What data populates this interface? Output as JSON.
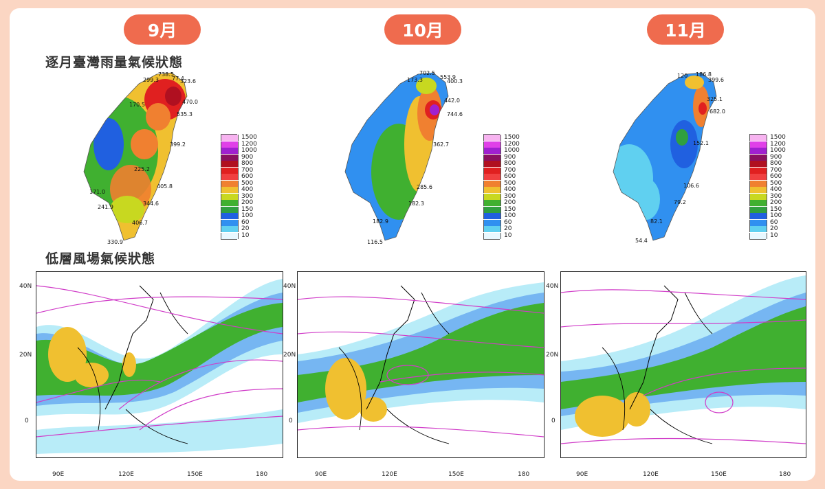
{
  "months": [
    {
      "label": "9月",
      "left": 180
    },
    {
      "label": "10月",
      "left": 559
    },
    {
      "label": "11月",
      "left": 941
    }
  ],
  "titles": {
    "rain": "逐月臺灣雨量氣候狀態",
    "wind": "低層風場氣候狀態"
  },
  "legend_labels": [
    "1500",
    "1200",
    "1000",
    "900",
    "800",
    "700",
    "600",
    "500",
    "400",
    "300",
    "200",
    "150",
    "100",
    "60",
    "20",
    "10"
  ],
  "legend_colors": [
    "#f7b3f0",
    "#e040e8",
    "#a020d0",
    "#8a1060",
    "#b01020",
    "#e02020",
    "#f04040",
    "#f08030",
    "#f0c030",
    "#c8d820",
    "#40b030",
    "#30a040",
    "#2060e0",
    "#3090f0",
    "#60d0f0",
    "#e8f8ff"
  ],
  "stations": {
    "sep": [
      "738.5",
      "77.4",
      "299.3",
      "323.6",
      "470.0",
      "170.5",
      "535.3",
      "399.2",
      "225.2",
      "405.8",
      "171.0",
      "344.6",
      "241.9",
      "406.7",
      "330.9"
    ],
    "oct": [
      "702.5",
      "553.9",
      "173.3",
      "400.3",
      "442.0",
      "744.6",
      "362.7",
      "285.6",
      "182.3",
      "182.9",
      "116.5"
    ],
    "nov": [
      "120",
      "186.8",
      "399.6",
      "325.1",
      "682.0",
      "152.1",
      "106.6",
      "79.2",
      "82.1",
      "54.4"
    ]
  },
  "axes": {
    "lat": [
      "40N",
      "20N",
      "0"
    ],
    "lon": [
      "90E",
      "120E",
      "150E",
      "180"
    ]
  },
  "colors": {
    "accent": "#ef6b4e",
    "bg": "#fbd6c3"
  }
}
